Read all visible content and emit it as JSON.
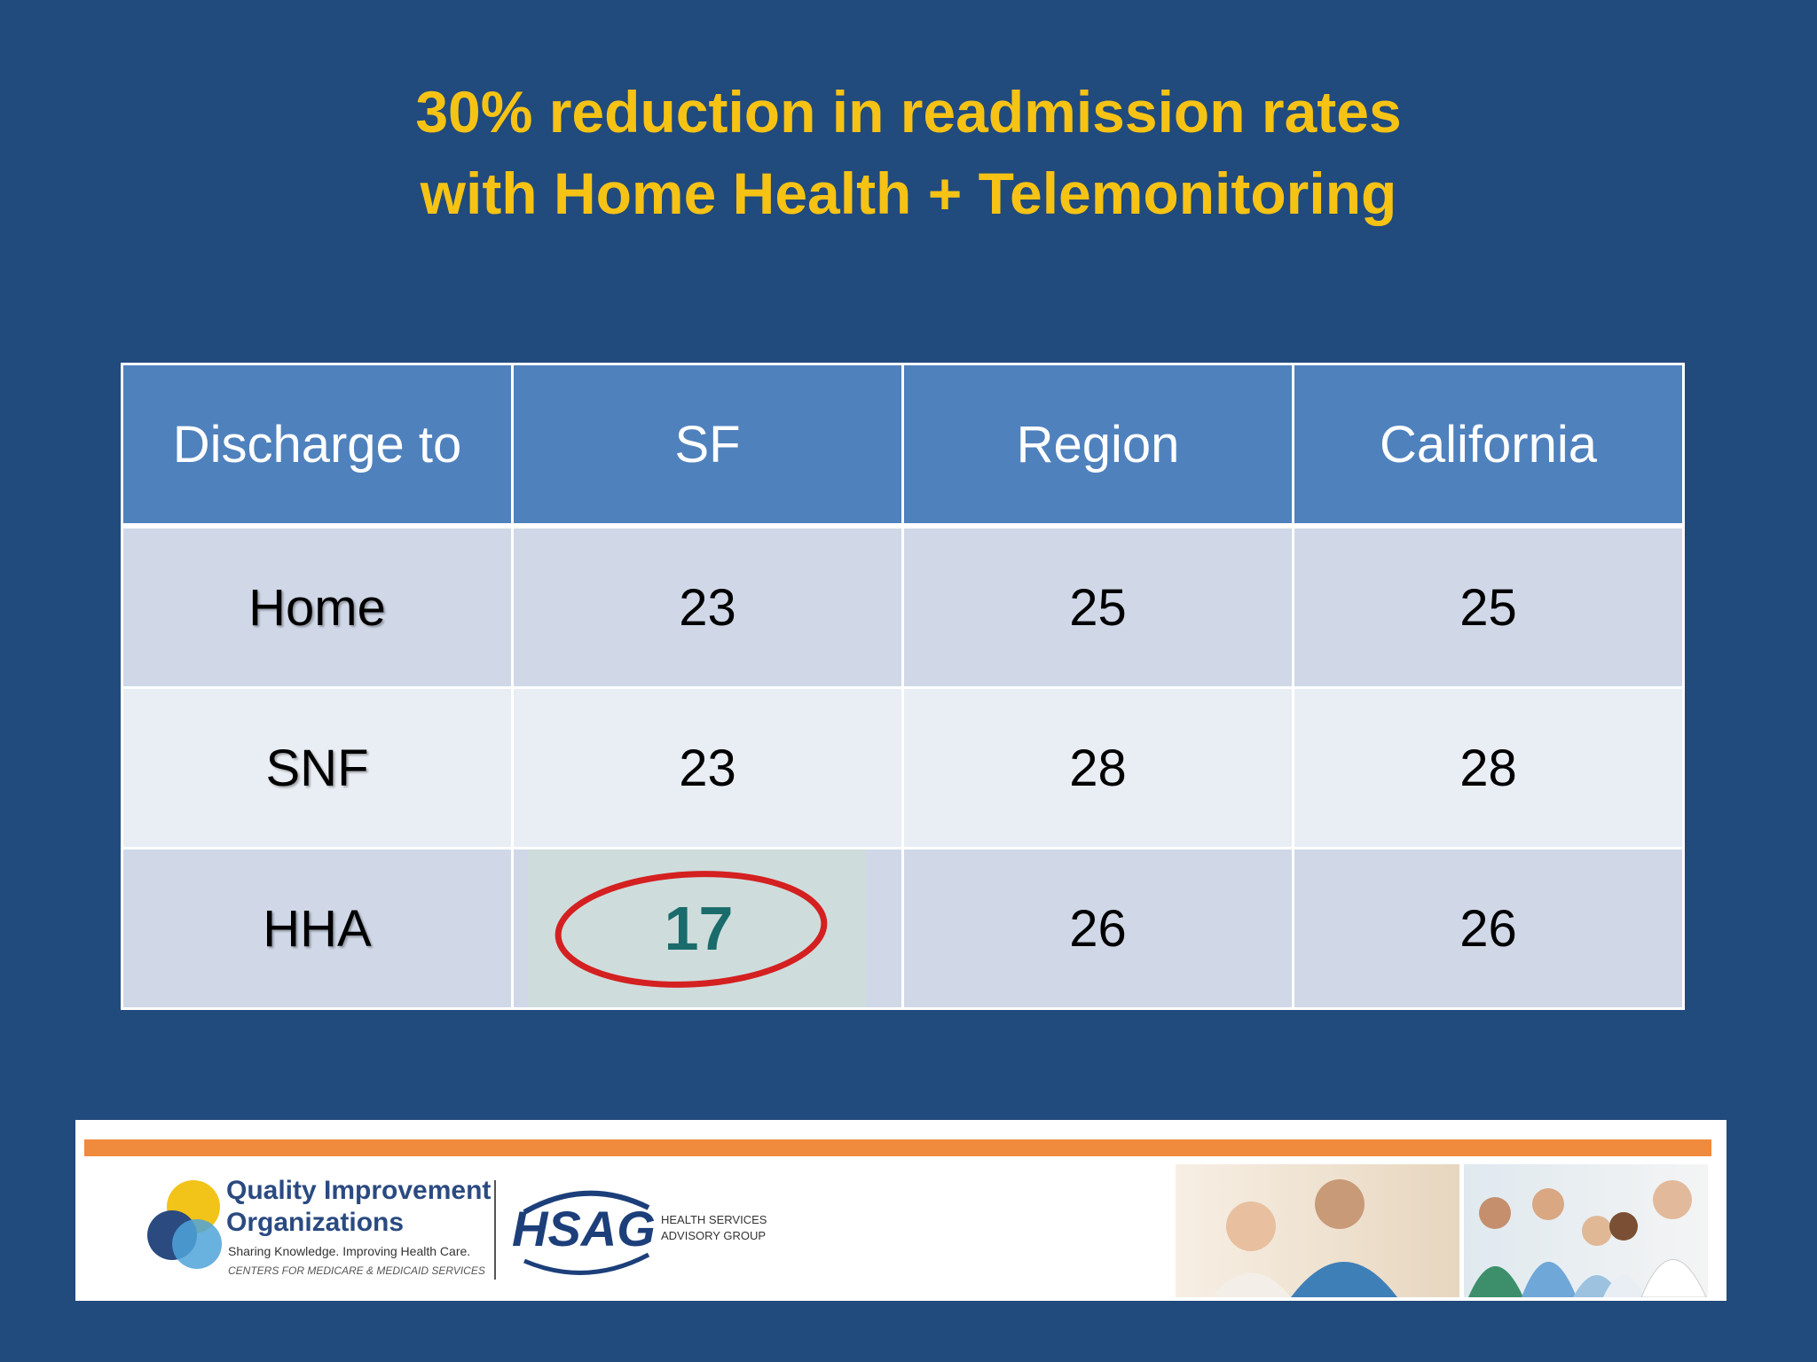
{
  "header": {
    "title_lines": [
      "30% reduction in readmission rates",
      "with Home Health + Telemonitoring"
    ]
  },
  "table": {
    "columns": [
      "Discharge to",
      "SF",
      "Region",
      "California"
    ],
    "rows": [
      [
        "Home",
        23,
        25,
        25
      ],
      [
        "SNF",
        23,
        28,
        28
      ],
      [
        "HHA",
        17,
        26,
        26
      ]
    ]
  },
  "footer": {
    "qio_lines": [
      "Quality Improvement",
      "Organizations"
    ],
    "qio_tagline": "Sharing Knowledge. Improving Health Care.",
    "qio_agency": "CENTERS FOR MEDICARE & MEDICAID SERVICES",
    "hsag": "HSAG",
    "hsag_lines": [
      "HEALTH SERVICES",
      "ADVISORY GROUP"
    ]
  }
}
